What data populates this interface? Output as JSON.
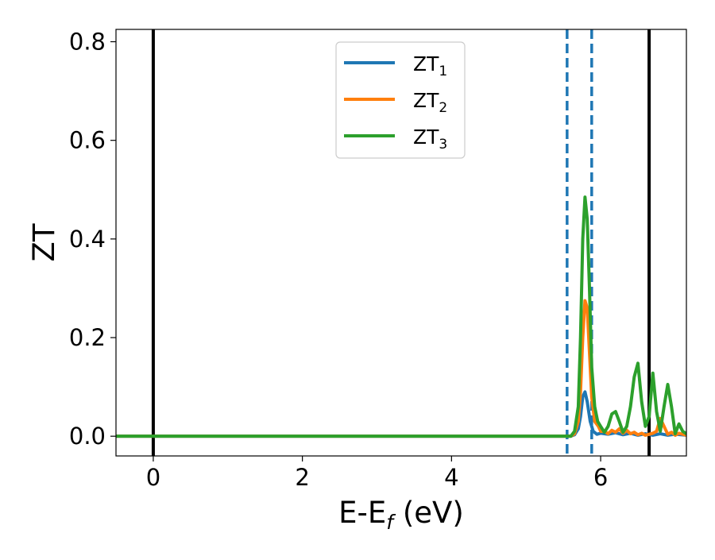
{
  "chart_data": {
    "type": "line",
    "xlabel_main": "E-E",
    "xlabel_sub": "f",
    "xlabel_tail": " (eV)",
    "ylabel": "ZT",
    "xlim": [
      -0.5,
      7.15
    ],
    "ylim": [
      -0.04,
      0.825
    ],
    "xticks": [
      0,
      2,
      4,
      6
    ],
    "xtick_labels": [
      "0",
      "2",
      "4",
      "6"
    ],
    "yticks": [
      0.0,
      0.2,
      0.4,
      0.6,
      0.8
    ],
    "ytick_labels": [
      "0.0",
      "0.2",
      "0.4",
      "0.6",
      "0.8"
    ],
    "grid": false,
    "legend_position": "top-center",
    "vertical_lines": [
      {
        "x": 0.0,
        "style": "solid",
        "color": "#000000"
      },
      {
        "x": 6.65,
        "style": "solid",
        "color": "#000000"
      },
      {
        "x": 5.55,
        "style": "dashed",
        "color": "#1f77b4"
      },
      {
        "x": 5.88,
        "style": "dashed",
        "color": "#1f77b4"
      }
    ],
    "series": [
      {
        "name": "ZT",
        "name_sub": "1",
        "color": "#1f77b4",
        "x": [
          -0.5,
          5.5,
          5.6,
          5.65,
          5.7,
          5.73,
          5.76,
          5.79,
          5.82,
          5.86,
          5.9,
          5.95,
          6.0,
          6.1,
          6.2,
          6.3,
          6.4,
          6.5,
          6.6,
          6.7,
          6.8,
          6.9,
          7.0,
          7.15
        ],
        "y": [
          0.0,
          0.0,
          0.0,
          0.003,
          0.015,
          0.04,
          0.08,
          0.09,
          0.07,
          0.03,
          0.01,
          0.004,
          0.006,
          0.004,
          0.007,
          0.003,
          0.006,
          0.002,
          0.005,
          0.002,
          0.005,
          0.002,
          0.004,
          0.002
        ]
      },
      {
        "name": "ZT",
        "name_sub": "2",
        "color": "#ff7f0e",
        "x": [
          -0.5,
          5.5,
          5.6,
          5.65,
          5.7,
          5.73,
          5.76,
          5.79,
          5.82,
          5.85,
          5.88,
          5.92,
          5.97,
          6.0,
          6.05,
          6.1,
          6.15,
          6.2,
          6.25,
          6.3,
          6.35,
          6.4,
          6.45,
          6.5,
          6.55,
          6.6,
          6.65,
          6.7,
          6.75,
          6.8,
          6.85,
          6.9,
          6.95,
          7.0,
          7.05,
          7.15
        ],
        "y": [
          0.0,
          0.0,
          0.0,
          0.005,
          0.03,
          0.09,
          0.2,
          0.275,
          0.26,
          0.17,
          0.08,
          0.03,
          0.02,
          0.01,
          0.01,
          0.005,
          0.012,
          0.008,
          0.015,
          0.006,
          0.012,
          0.005,
          0.008,
          0.003,
          0.006,
          0.002,
          0.004,
          0.006,
          0.01,
          0.036,
          0.02,
          0.004,
          0.008,
          0.002,
          0.006,
          0.002
        ]
      },
      {
        "name": "ZT",
        "name_sub": "3",
        "color": "#2ca02c",
        "x": [
          -0.5,
          5.5,
          5.6,
          5.65,
          5.7,
          5.73,
          5.76,
          5.79,
          5.82,
          5.85,
          5.88,
          5.92,
          5.96,
          6.0,
          6.05,
          6.1,
          6.15,
          6.2,
          6.25,
          6.3,
          6.35,
          6.4,
          6.45,
          6.5,
          6.55,
          6.6,
          6.65,
          6.7,
          6.75,
          6.8,
          6.85,
          6.9,
          6.95,
          7.0,
          7.05,
          7.1,
          7.15
        ],
        "y": [
          0.0,
          0.0,
          0.0,
          0.01,
          0.06,
          0.2,
          0.4,
          0.485,
          0.44,
          0.3,
          0.14,
          0.06,
          0.03,
          0.02,
          0.008,
          0.02,
          0.045,
          0.05,
          0.03,
          0.008,
          0.02,
          0.06,
          0.12,
          0.148,
          0.07,
          0.02,
          0.04,
          0.128,
          0.05,
          0.01,
          0.06,
          0.105,
          0.06,
          0.005,
          0.025,
          0.01,
          0.005
        ]
      }
    ]
  }
}
